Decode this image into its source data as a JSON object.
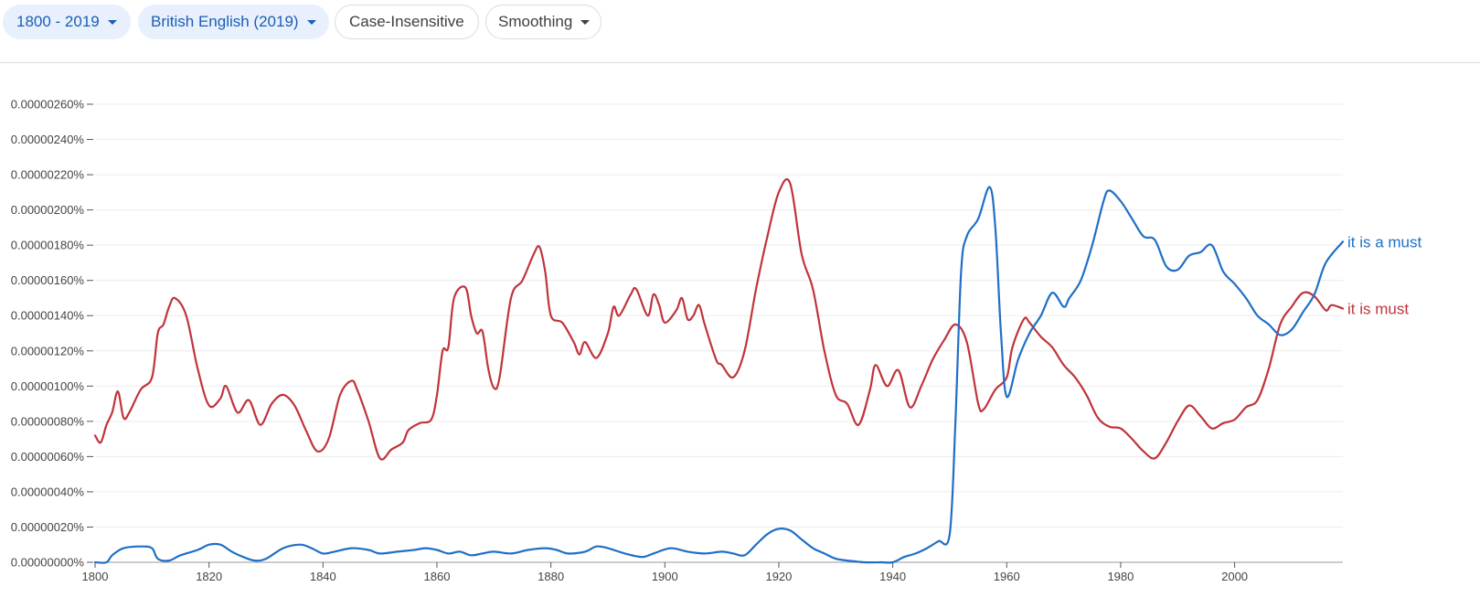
{
  "controls": {
    "year_range": "1800 - 2019",
    "corpus": "British English (2019)",
    "case": "Case-Insensitive",
    "smoothing": "Smoothing"
  },
  "colors": {
    "blue": "#1f6fc6",
    "red": "#c0343b",
    "grid": "#ececec",
    "axis": "#9a9a9a"
  },
  "chart_data": {
    "type": "line",
    "xlim": [
      1800,
      2019
    ],
    "ylim": [
      0,
      2.6e-08
    ],
    "x_ticks": [
      1800,
      1820,
      1840,
      1860,
      1880,
      1900,
      1920,
      1940,
      1960,
      1980,
      2000
    ],
    "y_ticks": [
      {
        "value": 0,
        "label": "0.00000000%"
      },
      {
        "value": 2e-09,
        "label": "0.00000020%"
      },
      {
        "value": 4e-09,
        "label": "0.00000040%"
      },
      {
        "value": 6e-09,
        "label": "0.00000060%"
      },
      {
        "value": 8e-09,
        "label": "0.00000080%"
      },
      {
        "value": 1e-08,
        "label": "0.00000100%"
      },
      {
        "value": 1.2e-08,
        "label": "0.00000120%"
      },
      {
        "value": 1.4e-08,
        "label": "0.00000140%"
      },
      {
        "value": 1.6e-08,
        "label": "0.00000160%"
      },
      {
        "value": 1.8e-08,
        "label": "0.00000180%"
      },
      {
        "value": 2e-08,
        "label": "0.00000200%"
      },
      {
        "value": 2.2e-08,
        "label": "0.00000220%"
      },
      {
        "value": 2.4e-08,
        "label": "0.00000240%"
      },
      {
        "value": 2.6e-08,
        "label": "0.00000260%"
      }
    ],
    "grid": true,
    "series": [
      {
        "name": "it is a must",
        "color": "#1f6fc6",
        "points": [
          [
            1800,
            0
          ],
          [
            1802,
            0.0
          ],
          [
            1803,
            4e-10
          ],
          [
            1805,
            8e-10
          ],
          [
            1808,
            9e-10
          ],
          [
            1810,
            8e-10
          ],
          [
            1811,
            2e-10
          ],
          [
            1813,
            1e-10
          ],
          [
            1815,
            4e-10
          ],
          [
            1818,
            7e-10
          ],
          [
            1820,
            1e-09
          ],
          [
            1822,
            1e-09
          ],
          [
            1824,
            6e-10
          ],
          [
            1826,
            3e-10
          ],
          [
            1828,
            1e-10
          ],
          [
            1830,
            2e-10
          ],
          [
            1833,
            8e-10
          ],
          [
            1836,
            1e-09
          ],
          [
            1838,
            8e-10
          ],
          [
            1840,
            5e-10
          ],
          [
            1842,
            6e-10
          ],
          [
            1845,
            8e-10
          ],
          [
            1848,
            7e-10
          ],
          [
            1850,
            5e-10
          ],
          [
            1853,
            6e-10
          ],
          [
            1856,
            7e-10
          ],
          [
            1858,
            8e-10
          ],
          [
            1860,
            7e-10
          ],
          [
            1862,
            5e-10
          ],
          [
            1864,
            6e-10
          ],
          [
            1866,
            4e-10
          ],
          [
            1868,
            5e-10
          ],
          [
            1870,
            6e-10
          ],
          [
            1873,
            5e-10
          ],
          [
            1876,
            7e-10
          ],
          [
            1879,
            8e-10
          ],
          [
            1881,
            7e-10
          ],
          [
            1883,
            5e-10
          ],
          [
            1886,
            6e-10
          ],
          [
            1888,
            9e-10
          ],
          [
            1890,
            8e-10
          ],
          [
            1893,
            5e-10
          ],
          [
            1896,
            3e-10
          ],
          [
            1898,
            5e-10
          ],
          [
            1901,
            8e-10
          ],
          [
            1904,
            6e-10
          ],
          [
            1907,
            5e-10
          ],
          [
            1910,
            6e-10
          ],
          [
            1912,
            5e-10
          ],
          [
            1914,
            4e-10
          ],
          [
            1916,
            1e-09
          ],
          [
            1918,
            1.6e-09
          ],
          [
            1920,
            1.9e-09
          ],
          [
            1922,
            1.8e-09
          ],
          [
            1924,
            1.3e-09
          ],
          [
            1926,
            8e-10
          ],
          [
            1928,
            5e-10
          ],
          [
            1930,
            2e-10
          ],
          [
            1932,
            1e-10
          ],
          [
            1935,
            0.0
          ],
          [
            1938,
            0.0
          ],
          [
            1940,
            0.0
          ],
          [
            1942,
            3e-10
          ],
          [
            1944,
            5e-10
          ],
          [
            1946,
            8e-10
          ],
          [
            1948,
            1.2e-09
          ],
          [
            1950,
            1.6e-09
          ],
          [
            1951,
            8e-09
          ],
          [
            1952,
            1.65e-08
          ],
          [
            1953,
            1.85e-08
          ],
          [
            1955,
            1.95e-08
          ],
          [
            1957,
            2.13e-08
          ],
          [
            1958,
            1.9e-08
          ],
          [
            1959,
            1.3e-08
          ],
          [
            1960,
            9.4e-09
          ],
          [
            1962,
            1.15e-08
          ],
          [
            1964,
            1.3e-08
          ],
          [
            1966,
            1.4e-08
          ],
          [
            1968,
            1.53e-08
          ],
          [
            1970,
            1.45e-08
          ],
          [
            1971,
            1.5e-08
          ],
          [
            1973,
            1.6e-08
          ],
          [
            1975,
            1.8e-08
          ],
          [
            1977,
            2.05e-08
          ],
          [
            1978,
            2.11e-08
          ],
          [
            1980,
            2.05e-08
          ],
          [
            1982,
            1.95e-08
          ],
          [
            1984,
            1.85e-08
          ],
          [
            1986,
            1.83e-08
          ],
          [
            1988,
            1.68e-08
          ],
          [
            1990,
            1.66e-08
          ],
          [
            1992,
            1.74e-08
          ],
          [
            1994,
            1.76e-08
          ],
          [
            1996,
            1.8e-08
          ],
          [
            1998,
            1.65e-08
          ],
          [
            2000,
            1.58e-08
          ],
          [
            2002,
            1.5e-08
          ],
          [
            2004,
            1.4e-08
          ],
          [
            2006,
            1.35e-08
          ],
          [
            2008,
            1.29e-08
          ],
          [
            2010,
            1.32e-08
          ],
          [
            2012,
            1.42e-08
          ],
          [
            2014,
            1.52e-08
          ],
          [
            2016,
            1.7e-08
          ],
          [
            2019,
            1.82e-08
          ]
        ]
      },
      {
        "name": "it is must",
        "color": "#c0343b",
        "points": [
          [
            1800,
            7.2e-09
          ],
          [
            1801,
            6.8e-09
          ],
          [
            1802,
            7.8e-09
          ],
          [
            1803,
            8.5e-09
          ],
          [
            1804,
            9.7e-09
          ],
          [
            1805,
            8.2e-09
          ],
          [
            1806,
            8.5e-09
          ],
          [
            1808,
            9.8e-09
          ],
          [
            1810,
            1.05e-08
          ],
          [
            1811,
            1.3e-08
          ],
          [
            1812,
            1.35e-08
          ],
          [
            1813,
            1.45e-08
          ],
          [
            1814,
            1.5e-08
          ],
          [
            1816,
            1.4e-08
          ],
          [
            1818,
            1.1e-08
          ],
          [
            1820,
            8.9e-09
          ],
          [
            1822,
            9.3e-09
          ],
          [
            1823,
            1e-08
          ],
          [
            1825,
            8.5e-09
          ],
          [
            1827,
            9.2e-09
          ],
          [
            1829,
            7.8e-09
          ],
          [
            1831,
            9e-09
          ],
          [
            1833,
            9.5e-09
          ],
          [
            1835,
            8.9e-09
          ],
          [
            1837,
            7.5e-09
          ],
          [
            1839,
            6.3e-09
          ],
          [
            1841,
            7e-09
          ],
          [
            1843,
            9.5e-09
          ],
          [
            1845,
            1.03e-08
          ],
          [
            1846,
            9.8e-09
          ],
          [
            1848,
            8e-09
          ],
          [
            1850,
            5.9e-09
          ],
          [
            1852,
            6.4e-09
          ],
          [
            1854,
            6.8e-09
          ],
          [
            1855,
            7.5e-09
          ],
          [
            1857,
            7.9e-09
          ],
          [
            1859,
            8.1e-09
          ],
          [
            1860,
            9.5e-09
          ],
          [
            1861,
            1.2e-08
          ],
          [
            1862,
            1.22e-08
          ],
          [
            1863,
            1.5e-08
          ],
          [
            1865,
            1.56e-08
          ],
          [
            1866,
            1.4e-08
          ],
          [
            1867,
            1.3e-08
          ],
          [
            1868,
            1.31e-08
          ],
          [
            1869,
            1.1e-08
          ],
          [
            1870,
            9.9e-09
          ],
          [
            1871,
            1.05e-08
          ],
          [
            1873,
            1.5e-08
          ],
          [
            1875,
            1.6e-08
          ],
          [
            1877,
            1.75e-08
          ],
          [
            1878,
            1.79e-08
          ],
          [
            1879,
            1.65e-08
          ],
          [
            1880,
            1.4e-08
          ],
          [
            1882,
            1.36e-08
          ],
          [
            1884,
            1.25e-08
          ],
          [
            1885,
            1.18e-08
          ],
          [
            1886,
            1.25e-08
          ],
          [
            1888,
            1.16e-08
          ],
          [
            1890,
            1.3e-08
          ],
          [
            1891,
            1.45e-08
          ],
          [
            1892,
            1.4e-08
          ],
          [
            1894,
            1.52e-08
          ],
          [
            1895,
            1.55e-08
          ],
          [
            1897,
            1.4e-08
          ],
          [
            1898,
            1.52e-08
          ],
          [
            1899,
            1.46e-08
          ],
          [
            1900,
            1.36e-08
          ],
          [
            1902,
            1.43e-08
          ],
          [
            1903,
            1.5e-08
          ],
          [
            1904,
            1.38e-08
          ],
          [
            1905,
            1.4e-08
          ],
          [
            1906,
            1.46e-08
          ],
          [
            1907,
            1.35e-08
          ],
          [
            1909,
            1.15e-08
          ],
          [
            1910,
            1.12e-08
          ],
          [
            1912,
            1.05e-08
          ],
          [
            1914,
            1.2e-08
          ],
          [
            1916,
            1.55e-08
          ],
          [
            1918,
            1.85e-08
          ],
          [
            1920,
            2.1e-08
          ],
          [
            1922,
            2.15e-08
          ],
          [
            1924,
            1.75e-08
          ],
          [
            1926,
            1.55e-08
          ],
          [
            1928,
            1.2e-08
          ],
          [
            1930,
            9.5e-09
          ],
          [
            1932,
            9e-09
          ],
          [
            1934,
            7.8e-09
          ],
          [
            1936,
            9.8e-09
          ],
          [
            1937,
            1.12e-08
          ],
          [
            1939,
            1e-08
          ],
          [
            1941,
            1.09e-08
          ],
          [
            1943,
            8.8e-09
          ],
          [
            1945,
            1e-08
          ],
          [
            1947,
            1.15e-08
          ],
          [
            1949,
            1.26e-08
          ],
          [
            1951,
            1.35e-08
          ],
          [
            1953,
            1.25e-08
          ],
          [
            1955,
            9e-09
          ],
          [
            1956,
            8.7e-09
          ],
          [
            1958,
            9.8e-09
          ],
          [
            1960,
            1.05e-08
          ],
          [
            1961,
            1.22e-08
          ],
          [
            1963,
            1.38e-08
          ],
          [
            1964,
            1.36e-08
          ],
          [
            1966,
            1.28e-08
          ],
          [
            1968,
            1.22e-08
          ],
          [
            1970,
            1.12e-08
          ],
          [
            1972,
            1.05e-08
          ],
          [
            1974,
            9.5e-09
          ],
          [
            1976,
            8.2e-09
          ],
          [
            1978,
            7.7e-09
          ],
          [
            1980,
            7.6e-09
          ],
          [
            1982,
            7e-09
          ],
          [
            1984,
            6.3e-09
          ],
          [
            1986,
            5.9e-09
          ],
          [
            1988,
            6.8e-09
          ],
          [
            1990,
            8e-09
          ],
          [
            1992,
            8.9e-09
          ],
          [
            1994,
            8.3e-09
          ],
          [
            1996,
            7.6e-09
          ],
          [
            1998,
            7.9e-09
          ],
          [
            2000,
            8.1e-09
          ],
          [
            2002,
            8.8e-09
          ],
          [
            2004,
            9.2e-09
          ],
          [
            2006,
            1.1e-08
          ],
          [
            2008,
            1.35e-08
          ],
          [
            2010,
            1.45e-08
          ],
          [
            2012,
            1.53e-08
          ],
          [
            2014,
            1.51e-08
          ],
          [
            2016,
            1.43e-08
          ],
          [
            2017,
            1.46e-08
          ],
          [
            2019,
            1.44e-08
          ]
        ]
      }
    ]
  }
}
